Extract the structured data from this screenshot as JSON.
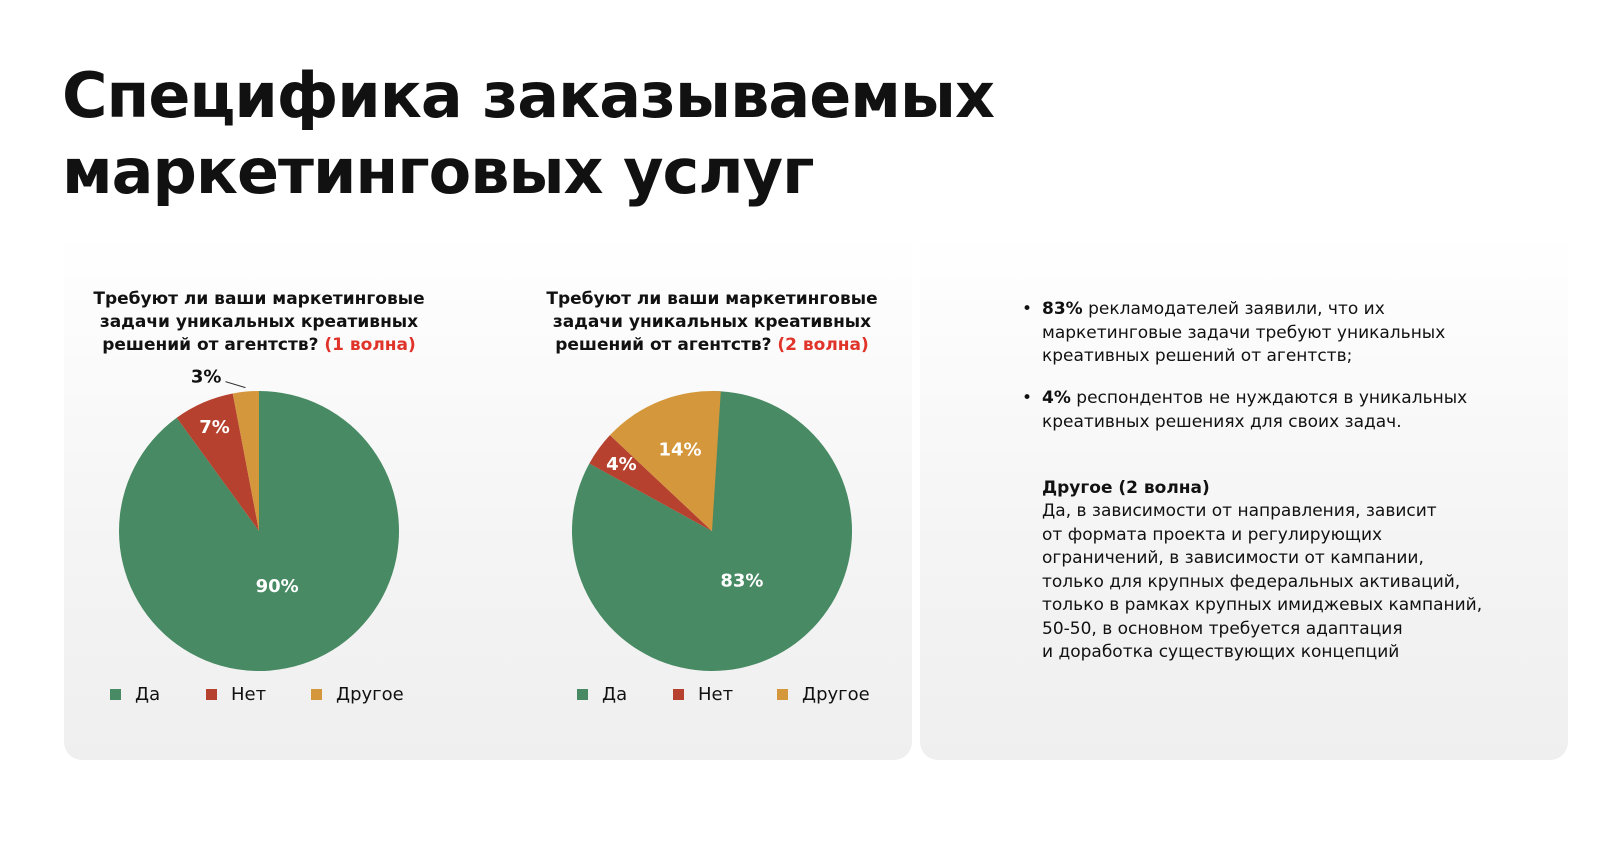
{
  "title": [
    "Специфика заказываемых",
    "маркетинговых услуг"
  ],
  "chart_data": [
    {
      "type": "pie",
      "title": "Требуют ли ваши маркетинговые задачи уникальных креативных решений от агентств?",
      "wave": "(1 волна)",
      "categories": [
        "Да",
        "Нет",
        "Другое"
      ],
      "values": [
        90,
        7,
        3
      ],
      "value_labels": [
        "90%",
        "7%",
        "3%"
      ],
      "colors": [
        "#478a63",
        "#b5412e",
        "#d4973b"
      ],
      "legend": "bottom"
    },
    {
      "type": "pie",
      "title": "Требуют ли ваши маркетинговые задачи уникальных креативных решений от агентств?",
      "wave": "(2 волна)",
      "categories": [
        "Да",
        "Нет",
        "Другое"
      ],
      "values": [
        83,
        4,
        14
      ],
      "value_labels": [
        "83%",
        "4%",
        "14%"
      ],
      "colors": [
        "#478a63",
        "#b5412e",
        "#d4973b"
      ],
      "legend": "bottom"
    }
  ],
  "notes": {
    "bullets": [
      {
        "bold": "83%",
        "text": "рекламодателей заявили, что их маркетинговые задачи требуют уникальных креативных решений от агентств;"
      },
      {
        "bold": "4%",
        "text": "респондентов не нуждаются в уникальных креативных решениях для своих задач."
      }
    ],
    "other_heading": "Другое (2 волна)",
    "other_lines": [
      "Да, в зависимости от направления, зависит",
      "от формата проекта и регулирующих",
      "ограничений, в зависимости от кампании,",
      "только для крупных федеральных активаций,",
      "только в рамках крупных имиджевых кампаний,",
      "50-50, в основном требуется адаптация",
      "и доработка существующих концепций"
    ]
  }
}
